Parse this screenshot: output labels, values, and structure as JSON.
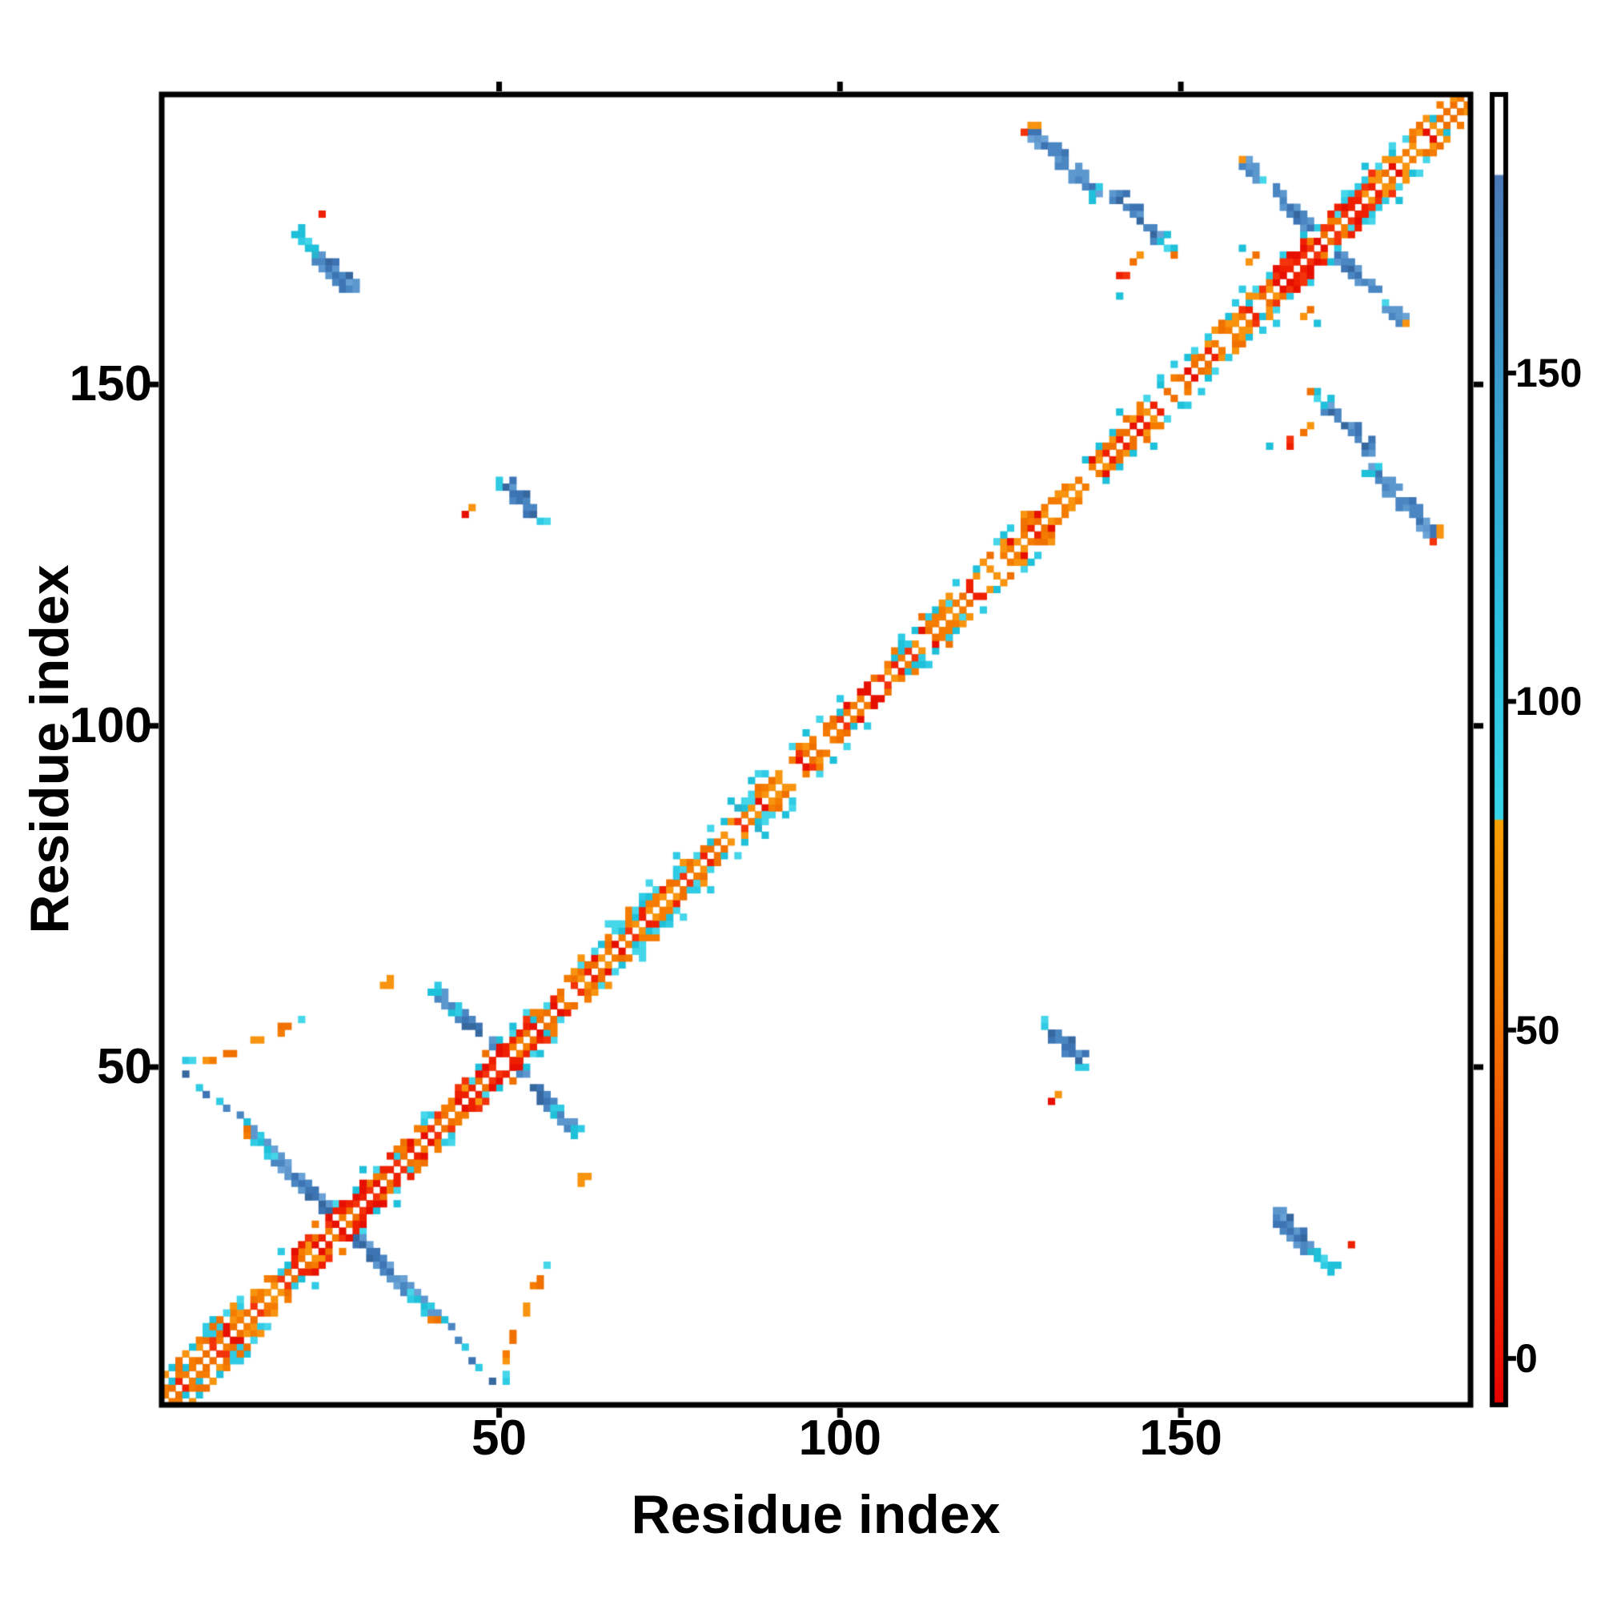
{
  "figure": {
    "background": "#ffffff",
    "frame_color": "#000000"
  },
  "chart_data": {
    "type": "heatmap",
    "subtype": "protein-residue-contact-map",
    "title": "",
    "xlabel": "Residue index",
    "ylabel": "Residue index",
    "axis_range": [
      1,
      192
    ],
    "n_residues": 192,
    "x_ticks": [
      50,
      100,
      150
    ],
    "y_ticks": [
      50,
      100,
      150
    ],
    "grid": false,
    "diagonal_color": "#ffffff",
    "colorbar": {
      "position": "right",
      "ticks": [
        0,
        50,
        100,
        150
      ],
      "value_range": [
        -7,
        192
      ],
      "white_above": 180,
      "stops": [
        {
          "v": -7,
          "c": "#e60000"
        },
        {
          "v": 0,
          "c": "#ee1200"
        },
        {
          "v": 30,
          "c": "#f14b00"
        },
        {
          "v": 55,
          "c": "#f57d00"
        },
        {
          "v": 81.9,
          "c": "#f9a000"
        },
        {
          "v": 82.1,
          "c": "#38d5e8"
        },
        {
          "v": 110,
          "c": "#2cc2e2"
        },
        {
          "v": 150,
          "c": "#3a9bcc"
        },
        {
          "v": 180,
          "c": "#4b79b6"
        },
        {
          "v": 180.3,
          "c": "#ffffff"
        },
        {
          "v": 192,
          "c": "#ffffff"
        }
      ]
    },
    "palette": {
      "orange": [
        "#f57c00",
        "#f8940f",
        "#f07000"
      ],
      "red": [
        "#ee2000",
        "#e60f00",
        "#f4330b"
      ],
      "cyan": [
        "#2fcbe4",
        "#1fc0da",
        "#45d6ea"
      ],
      "blue": [
        "#4a86c2",
        "#3d74b4",
        "#5c97ce"
      ],
      "blue2": [
        "#3d74b4",
        "#36689f",
        "#4a86c2"
      ],
      "blue3": [
        "#5c97ce",
        "#6aa2d6",
        "#4a86c2"
      ],
      "cyan2": [
        "#1fc0da",
        "#2fcbe4",
        "#28b4cf"
      ]
    },
    "seed": 1337,
    "diagonal_band": {
      "length": 192,
      "offsets": [
        {
          "off": 1,
          "mix": [
            [
              "orange",
              0.4
            ],
            [
              "red",
              0.28
            ],
            [
              "orange",
              0.22
            ]
          ]
        },
        {
          "off": 2,
          "mix": [
            [
              "orange",
              0.4
            ],
            [
              "red",
              0.1
            ],
            [
              "cyan",
              0.18
            ]
          ]
        },
        {
          "off": 3,
          "mix": [
            [
              "orange",
              0.2
            ],
            [
              "cyan",
              0.25
            ]
          ]
        },
        {
          "off": 4,
          "mix": [
            [
              "orange",
              0.06
            ],
            [
              "cyan",
              0.16
            ]
          ]
        },
        {
          "off": 5,
          "mix": [
            [
              "cyan",
              0.06
            ]
          ]
        }
      ]
    },
    "x_motifs": [
      {
        "center": 27,
        "half_len": 13,
        "cyan_outer": 0.3,
        "tip_orange": true,
        "red_boost": true
      },
      {
        "center": 51,
        "half_len": 10,
        "cyan_outer": 0.45,
        "tip_orange": false,
        "red_boost": true
      },
      {
        "center": 171,
        "half_len": 11,
        "cyan_outer": 0.3,
        "tip_orange": true,
        "red_boost": true
      }
    ],
    "patches": [
      {
        "name": "strand-pair-20-168",
        "i0": 20,
        "j0": 172,
        "steps": 9,
        "style": "cyan-then-blue"
      },
      {
        "name": "strand-pair-50-133",
        "i0": 50,
        "j0": 136,
        "steps": 7,
        "style": "blue-cyan-tips"
      },
      {
        "name": "strand-pair-128-182",
        "i0": 128,
        "j0": 187,
        "steps": 10,
        "style": "blue-orange-head"
      },
      {
        "name": "strand-pair-140-174",
        "i0": 140,
        "j0": 178,
        "steps": 9,
        "style": "blue-cyan-tail"
      }
    ],
    "satellites": [
      [
        24,
        175,
        "red"
      ],
      [
        7,
        51,
        "orange"
      ],
      [
        8,
        51,
        "orange"
      ],
      [
        10,
        52,
        "orange"
      ],
      [
        11,
        52,
        "orange"
      ],
      [
        14,
        54,
        "orange"
      ],
      [
        15,
        54,
        "orange"
      ],
      [
        18,
        55,
        "orange"
      ],
      [
        18,
        56,
        "orange"
      ],
      [
        19,
        56,
        "orange"
      ],
      [
        21,
        57,
        "cyan"
      ],
      [
        4,
        51,
        "cyan"
      ],
      [
        5,
        51,
        "cyan"
      ],
      [
        4,
        49,
        "blue2"
      ],
      [
        6,
        47,
        "cyan"
      ],
      [
        7,
        46,
        "blue"
      ],
      [
        9,
        45,
        "cyan2"
      ],
      [
        10,
        44,
        "blue"
      ],
      [
        12,
        43,
        "blue2"
      ],
      [
        13,
        42,
        "cyan"
      ],
      [
        33,
        62,
        "orange"
      ],
      [
        34,
        62,
        "orange"
      ],
      [
        34,
        63,
        "orange"
      ],
      [
        45,
        131,
        "red"
      ],
      [
        46,
        132,
        "orange"
      ],
      [
        86,
        88,
        "cyan"
      ],
      [
        86,
        89,
        "cyan"
      ],
      [
        87,
        89,
        "cyan"
      ],
      [
        87,
        90,
        "cyan"
      ],
      [
        85,
        88,
        "cyan2"
      ],
      [
        109,
        111,
        "cyan"
      ],
      [
        109,
        112,
        "cyan"
      ],
      [
        110,
        112,
        "cyan"
      ],
      [
        141,
        166,
        "red"
      ],
      [
        142,
        166,
        "red"
      ],
      [
        143,
        168,
        "orange"
      ],
      [
        144,
        169,
        "orange"
      ],
      [
        141,
        163,
        "cyan"
      ],
      [
        160,
        168,
        "orange"
      ],
      [
        161,
        169,
        "orange"
      ],
      [
        159,
        170,
        "cyan"
      ],
      [
        1,
        5,
        "orange"
      ],
      [
        2,
        6,
        "cyan"
      ],
      [
        3,
        6,
        "orange"
      ],
      [
        3,
        7,
        "orange"
      ],
      [
        4,
        8,
        "orange"
      ],
      [
        5,
        9,
        "cyan"
      ],
      [
        6,
        10,
        "orange"
      ],
      [
        7,
        10,
        "orange"
      ],
      [
        7,
        11,
        "cyan"
      ],
      [
        8,
        12,
        "orange"
      ],
      [
        9,
        13,
        "orange"
      ],
      [
        10,
        14,
        "cyan"
      ],
      [
        11,
        14,
        "orange"
      ],
      [
        11,
        15,
        "orange"
      ],
      [
        12,
        16,
        "cyan"
      ]
    ]
  }
}
